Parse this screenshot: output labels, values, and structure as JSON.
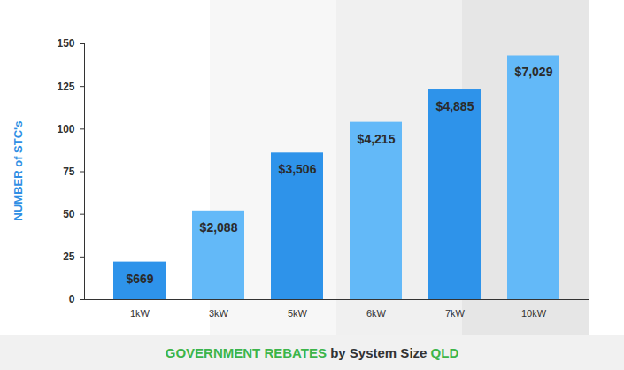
{
  "chart_data": {
    "type": "bar",
    "title": "GOVERNMENT REBATES by System Size QLD",
    "title_highlights": [
      "GOVERNMENT REBATES",
      "QLD"
    ],
    "y_label": "NUMBER of STC's",
    "categories": [
      "1kW",
      "3kW",
      "5kW",
      "6kW",
      "7kW",
      "10kW"
    ],
    "values": [
      22,
      52,
      86,
      104,
      123,
      143
    ],
    "bar_labels": [
      "$669",
      "$2,088",
      "$3,506",
      "$4,215",
      "$4,885",
      "$7,029"
    ],
    "colors": [
      "#2e93ea",
      "#63b9f8",
      "#2e93ea",
      "#63b9f8",
      "#2e93ea",
      "#63b9f8"
    ],
    "ylim": [
      0,
      150
    ],
    "yticks": [
      0,
      25,
      50,
      75,
      100,
      125,
      150
    ],
    "grid": false
  }
}
